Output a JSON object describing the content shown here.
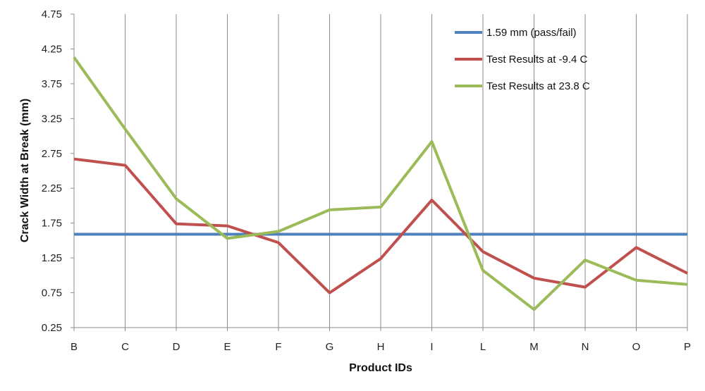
{
  "chart_data": {
    "type": "line",
    "title": "",
    "xlabel": "Product IDs",
    "ylabel": "Crack Width at Break (mm)",
    "ylim": [
      0.25,
      4.75
    ],
    "yticks": [
      "0.25",
      "0.75",
      "1.25",
      "1.75",
      "2.25",
      "2.75",
      "3.25",
      "3.75",
      "4.25",
      "4.75"
    ],
    "grid": "vertical lines at categories",
    "legend_position": "top-right",
    "categories": [
      "B",
      "C",
      "D",
      "E",
      "F",
      "G",
      "H",
      "I",
      "L",
      "M",
      "N",
      "O",
      "P"
    ],
    "series": [
      {
        "name": "1.59 mm (pass/fail)",
        "color": "#4f81bd",
        "values": [
          1.59,
          1.59,
          1.59,
          1.59,
          1.59,
          1.59,
          1.59,
          1.59,
          1.59,
          1.59,
          1.59,
          1.59,
          1.59
        ]
      },
      {
        "name": "Test Results at -9.4 C",
        "color": "#c0504d",
        "values": [
          2.67,
          2.58,
          1.74,
          1.71,
          1.47,
          0.75,
          1.24,
          2.08,
          1.34,
          0.96,
          0.83,
          1.4,
          1.03
        ]
      },
      {
        "name": "Test Results at 23.8 C",
        "color": "#9bbb59",
        "values": [
          4.13,
          3.1,
          2.1,
          1.53,
          1.63,
          1.94,
          1.98,
          2.92,
          1.07,
          0.51,
          1.22,
          0.93,
          0.87
        ]
      }
    ]
  }
}
